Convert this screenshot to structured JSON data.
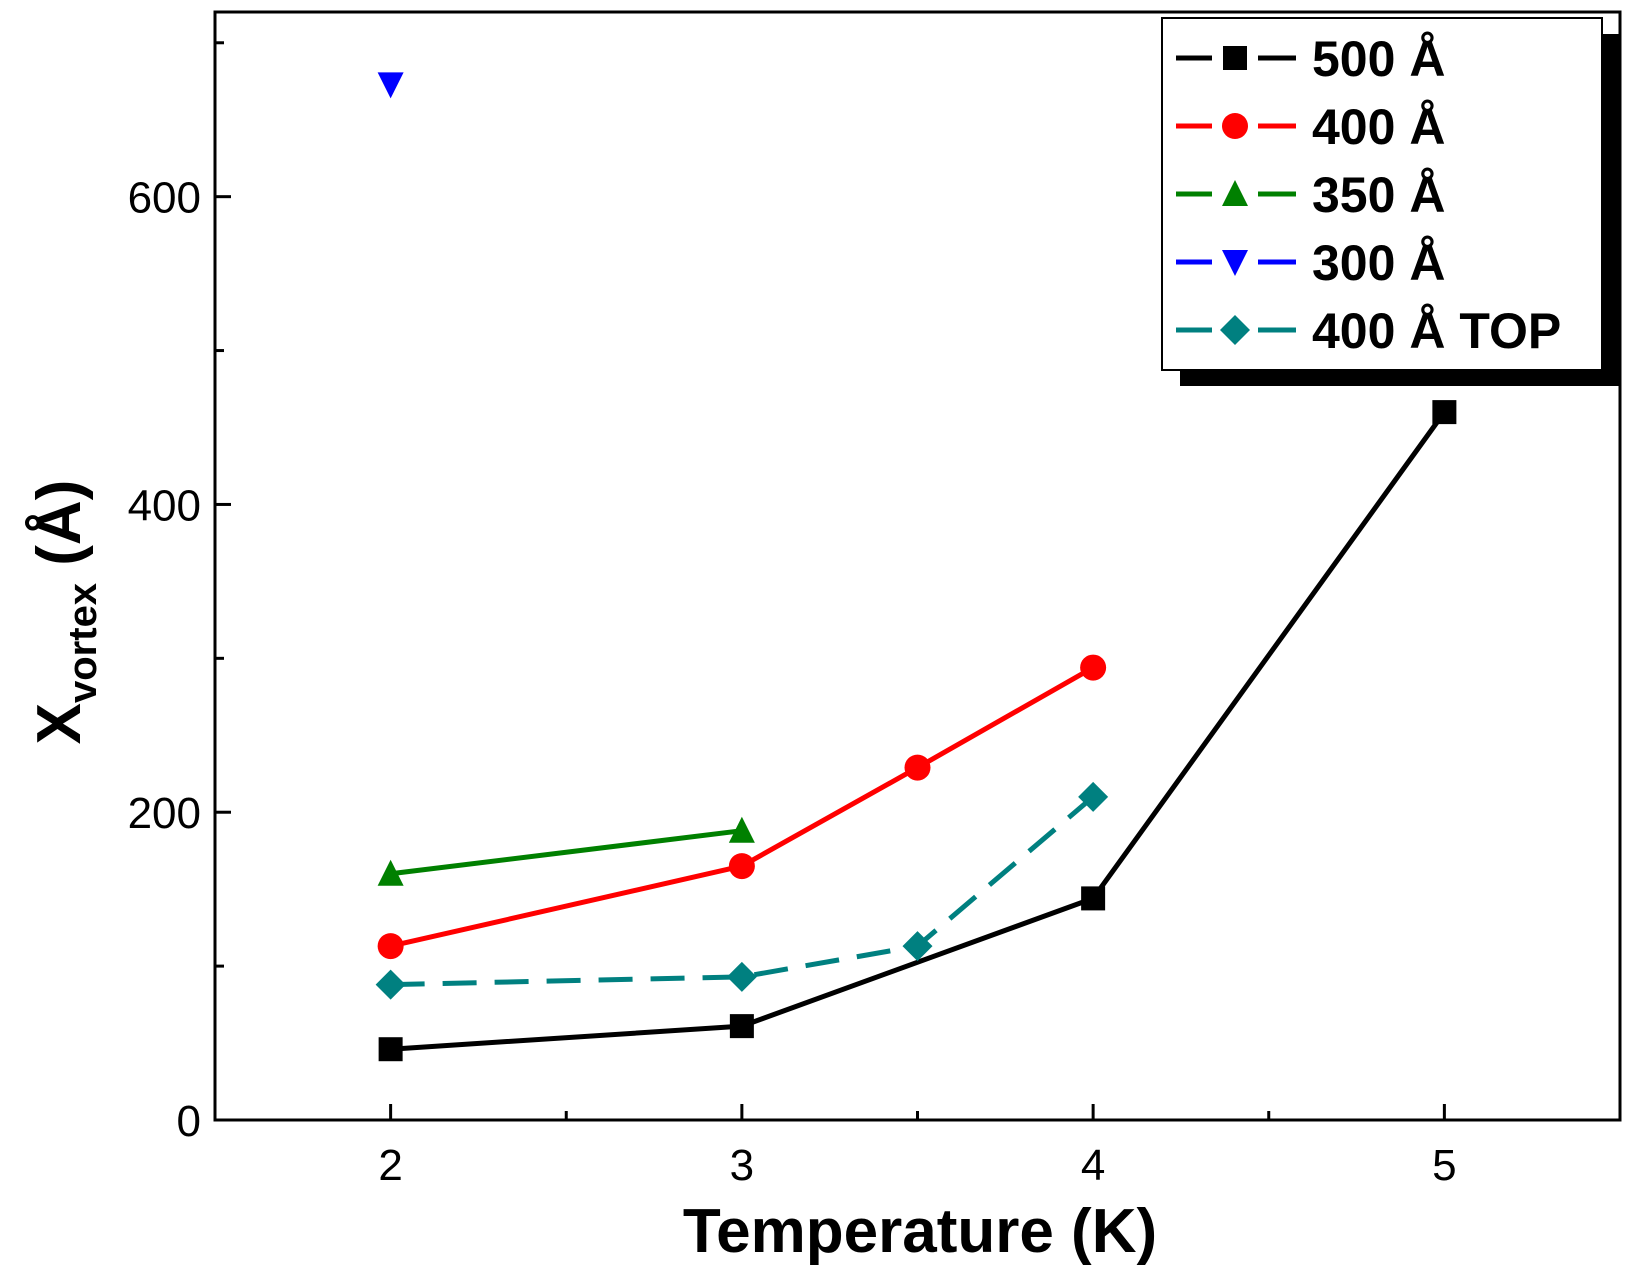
{
  "chart_data": {
    "type": "line",
    "title": "",
    "xlabel": "Temperature (K)",
    "ylabel_main": "X",
    "ylabel_sub": "vortex",
    "ylabel_unit": " (Å)",
    "xlim": [
      1.5,
      5.5
    ],
    "ylim": [
      0,
      720
    ],
    "xticks": [
      2,
      3,
      4,
      5
    ],
    "xminor": [
      2.5,
      3.5,
      4.5
    ],
    "yticks": [
      0,
      200,
      400,
      600
    ],
    "yminor": [
      100,
      300,
      500,
      700
    ],
    "legend_position": "top-right",
    "series": [
      {
        "name": "500 Å",
        "color": "#000000",
        "marker": "square",
        "dash": "solid",
        "x": [
          2,
          3,
          4,
          5
        ],
        "y": [
          46,
          61,
          144,
          460
        ]
      },
      {
        "name": "400 Å",
        "color": "#ff0000",
        "marker": "circle",
        "dash": "solid",
        "x": [
          2,
          3,
          3.5,
          4
        ],
        "y": [
          113,
          165,
          229,
          294
        ]
      },
      {
        "name": "350 Å",
        "color": "#008000",
        "marker": "triangle-up",
        "dash": "solid",
        "x": [
          2,
          3
        ],
        "y": [
          160,
          188
        ]
      },
      {
        "name": "300 Å",
        "color": "#0000ff",
        "marker": "triangle-down",
        "dash": "solid",
        "x": [
          2
        ],
        "y": [
          673
        ]
      },
      {
        "name": "400 Å TOP",
        "color": "#008080",
        "marker": "diamond",
        "dash": "dashed",
        "x": [
          2,
          3,
          3.5,
          4
        ],
        "y": [
          88,
          93,
          113,
          210
        ]
      }
    ]
  }
}
